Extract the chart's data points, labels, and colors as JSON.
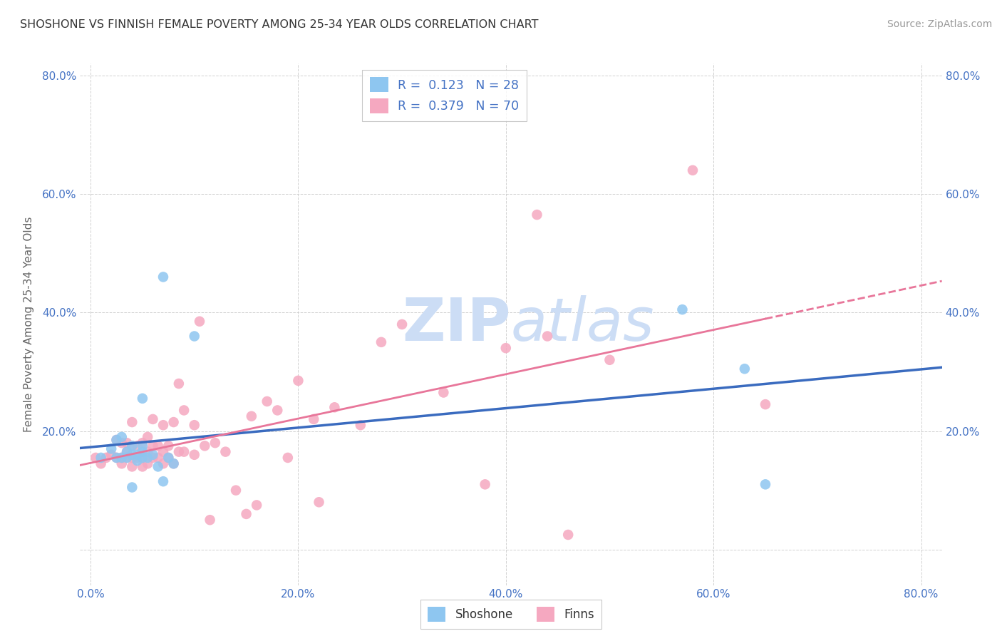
{
  "title": "SHOSHONE VS FINNISH FEMALE POVERTY AMONG 25-34 YEAR OLDS CORRELATION CHART",
  "source": "Source: ZipAtlas.com",
  "ylabel": "Female Poverty Among 25-34 Year Olds",
  "xlim": [
    -0.01,
    0.82
  ],
  "ylim": [
    -0.06,
    0.82
  ],
  "xticks": [
    0.0,
    0.2,
    0.4,
    0.6,
    0.8
  ],
  "yticks": [
    0.0,
    0.2,
    0.4,
    0.6,
    0.8
  ],
  "xticklabels": [
    "0.0%",
    "20.0%",
    "40.0%",
    "60.0%",
    "80.0%"
  ],
  "left_yticklabels": [
    "",
    "20.0%",
    "40.0%",
    "60.0%",
    "80.0%"
  ],
  "right_yticklabels": [
    "",
    "20.0%",
    "40.0%",
    "60.0%",
    "80.0%"
  ],
  "shoshone_R": 0.123,
  "shoshone_N": 28,
  "finns_R": 0.379,
  "finns_N": 70,
  "shoshone_color": "#8ec6f0",
  "finns_color": "#f5a8c0",
  "shoshone_line_color": "#3a6bbf",
  "finns_line_color": "#e8769a",
  "background_color": "#ffffff",
  "grid_color": "#cccccc",
  "watermark_color": "#ccddf5",
  "shoshone_x": [
    0.01,
    0.02,
    0.025,
    0.025,
    0.03,
    0.03,
    0.035,
    0.035,
    0.04,
    0.04,
    0.04,
    0.045,
    0.045,
    0.05,
    0.05,
    0.05,
    0.05,
    0.055,
    0.06,
    0.065,
    0.07,
    0.07,
    0.075,
    0.08,
    0.1,
    0.57,
    0.63,
    0.65
  ],
  "shoshone_y": [
    0.155,
    0.17,
    0.155,
    0.185,
    0.155,
    0.19,
    0.155,
    0.165,
    0.105,
    0.16,
    0.175,
    0.15,
    0.16,
    0.155,
    0.165,
    0.175,
    0.255,
    0.155,
    0.16,
    0.14,
    0.115,
    0.46,
    0.155,
    0.145,
    0.36,
    0.405,
    0.305,
    0.11
  ],
  "finns_x": [
    0.005,
    0.01,
    0.015,
    0.02,
    0.025,
    0.025,
    0.03,
    0.03,
    0.03,
    0.035,
    0.035,
    0.035,
    0.04,
    0.04,
    0.04,
    0.04,
    0.045,
    0.045,
    0.05,
    0.05,
    0.05,
    0.055,
    0.055,
    0.055,
    0.06,
    0.06,
    0.06,
    0.065,
    0.065,
    0.07,
    0.07,
    0.07,
    0.075,
    0.075,
    0.08,
    0.08,
    0.085,
    0.085,
    0.09,
    0.09,
    0.1,
    0.1,
    0.105,
    0.11,
    0.115,
    0.12,
    0.13,
    0.14,
    0.15,
    0.155,
    0.16,
    0.17,
    0.18,
    0.19,
    0.2,
    0.215,
    0.22,
    0.235,
    0.26,
    0.28,
    0.3,
    0.34,
    0.38,
    0.4,
    0.43,
    0.44,
    0.46,
    0.5,
    0.58,
    0.65
  ],
  "finns_y": [
    0.155,
    0.145,
    0.155,
    0.16,
    0.155,
    0.185,
    0.145,
    0.155,
    0.18,
    0.155,
    0.165,
    0.18,
    0.14,
    0.155,
    0.175,
    0.215,
    0.155,
    0.175,
    0.14,
    0.155,
    0.18,
    0.145,
    0.165,
    0.19,
    0.155,
    0.175,
    0.22,
    0.155,
    0.175,
    0.145,
    0.165,
    0.21,
    0.155,
    0.175,
    0.145,
    0.215,
    0.165,
    0.28,
    0.165,
    0.235,
    0.16,
    0.21,
    0.385,
    0.175,
    0.05,
    0.18,
    0.165,
    0.1,
    0.06,
    0.225,
    0.075,
    0.25,
    0.235,
    0.155,
    0.285,
    0.22,
    0.08,
    0.24,
    0.21,
    0.35,
    0.38,
    0.265,
    0.11,
    0.34,
    0.565,
    0.36,
    0.025,
    0.32,
    0.64,
    0.245
  ]
}
